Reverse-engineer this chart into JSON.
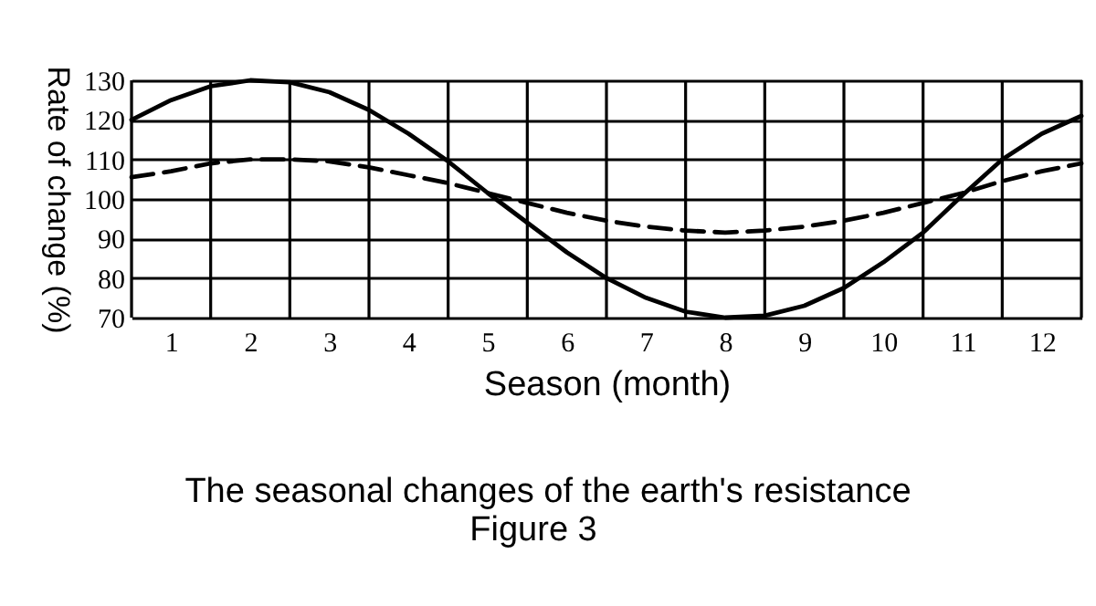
{
  "chart_data": {
    "type": "line",
    "title": "The seasonal changes of the earth's resistance",
    "xlabel": "Season (month)",
    "ylabel": "Rate of change (%)",
    "annotations": [
      "Figure 3"
    ],
    "x": [
      0.5,
      1,
      1.5,
      2,
      2.5,
      3,
      3.5,
      4,
      4.5,
      5,
      5.5,
      6,
      6.5,
      7,
      7.5,
      8,
      8.5,
      9,
      9.5,
      10,
      10.5,
      11,
      11.5,
      12,
      12.5
    ],
    "series": [
      {
        "color": "#000000",
        "line_style": "solid",
        "values": [
          120,
          125,
          128.5,
          130,
          129.5,
          127,
          122.5,
          116.5,
          109.5,
          101.5,
          94,
          86.5,
          80,
          75,
          71.5,
          70,
          70.5,
          73,
          77.5,
          84,
          91.5,
          101,
          110,
          116.5,
          121
        ]
      },
      {
        "color": "#000000",
        "line_style": "dashed",
        "values": [
          105.5,
          107,
          109,
          110,
          110,
          109.5,
          108,
          106,
          104,
          101.5,
          99,
          96.5,
          94.5,
          93,
          92,
          91.5,
          92,
          93,
          94.5,
          96.5,
          99,
          101.5,
          104.5,
          107,
          109
        ]
      }
    ],
    "xlim": [
      0.5,
      12.5
    ],
    "xticks": [
      {
        "value": 0.5,
        "label": null
      },
      1,
      {
        "value": 1.5,
        "label": null
      },
      2,
      {
        "value": 2.5,
        "label": null
      },
      3,
      {
        "value": 3.5,
        "label": null
      },
      4,
      {
        "value": 4.5,
        "label": null
      },
      5,
      {
        "value": 5.5,
        "label": null
      },
      6,
      {
        "value": 6.5,
        "label": null
      },
      7,
      {
        "value": 7.5,
        "label": null
      },
      8,
      {
        "value": 8.5,
        "label": null
      },
      9,
      {
        "value": 9.5,
        "label": null
      },
      10,
      {
        "value": 10.5,
        "label": null
      },
      11,
      {
        "value": 11.5,
        "label": null
      },
      12,
      {
        "value": 12.5,
        "label": null
      }
    ],
    "ylim": [
      70,
      130
    ],
    "yticks": [
      70,
      80,
      90,
      100,
      110,
      120,
      130
    ],
    "grid": true,
    "marker": "none"
  }
}
